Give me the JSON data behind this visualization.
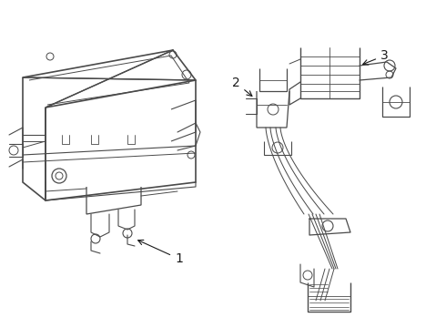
{
  "background_color": "#ffffff",
  "line_color": "#4a4a4a",
  "line_width": 0.8,
  "label_color": "#1a1a1a",
  "label_fontsize": 9,
  "figsize": [
    4.9,
    3.6
  ],
  "dpi": 100
}
